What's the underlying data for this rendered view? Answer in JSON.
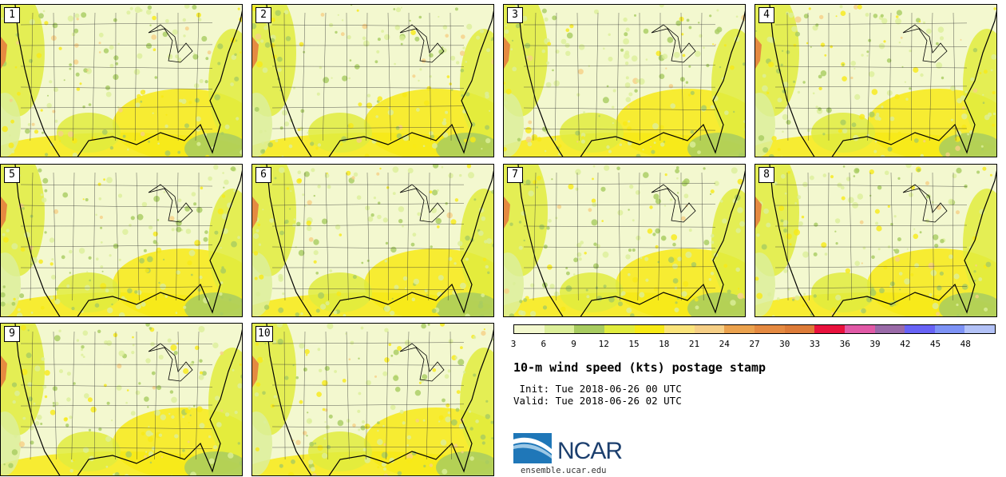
{
  "panels": [
    {
      "label": "1"
    },
    {
      "label": "2"
    },
    {
      "label": "3"
    },
    {
      "label": "4"
    },
    {
      "label": "5"
    },
    {
      "label": "6"
    },
    {
      "label": "7"
    },
    {
      "label": "8"
    },
    {
      "label": "9"
    },
    {
      "label": "10"
    }
  ],
  "colorbar": {
    "ticks": [
      "3",
      "6",
      "9",
      "12",
      "15",
      "18",
      "21",
      "24",
      "27",
      "30",
      "33",
      "36",
      "39",
      "42",
      "45",
      "48"
    ],
    "colors": [
      "#f3f8cf",
      "#dcef9a",
      "#a8cc60",
      "#e0ec3e",
      "#f7ea16",
      "#fae47c",
      "#f6cf86",
      "#eba24e",
      "#e58a41",
      "#dd7b38",
      "#e9123d",
      "#e159a6",
      "#9a6aa8",
      "#6863f6",
      "#7e93f6",
      "#b3c2f7"
    ]
  },
  "title": "10-m wind speed (kts) postage stamp",
  "init": " Init: Tue 2018-06-26 00 UTC",
  "valid": "Valid: Tue 2018-06-26 02 UTC",
  "logo": {
    "text": "NCAR",
    "url": "ensemble.ucar.edu",
    "color": "#1c3f6e"
  }
}
